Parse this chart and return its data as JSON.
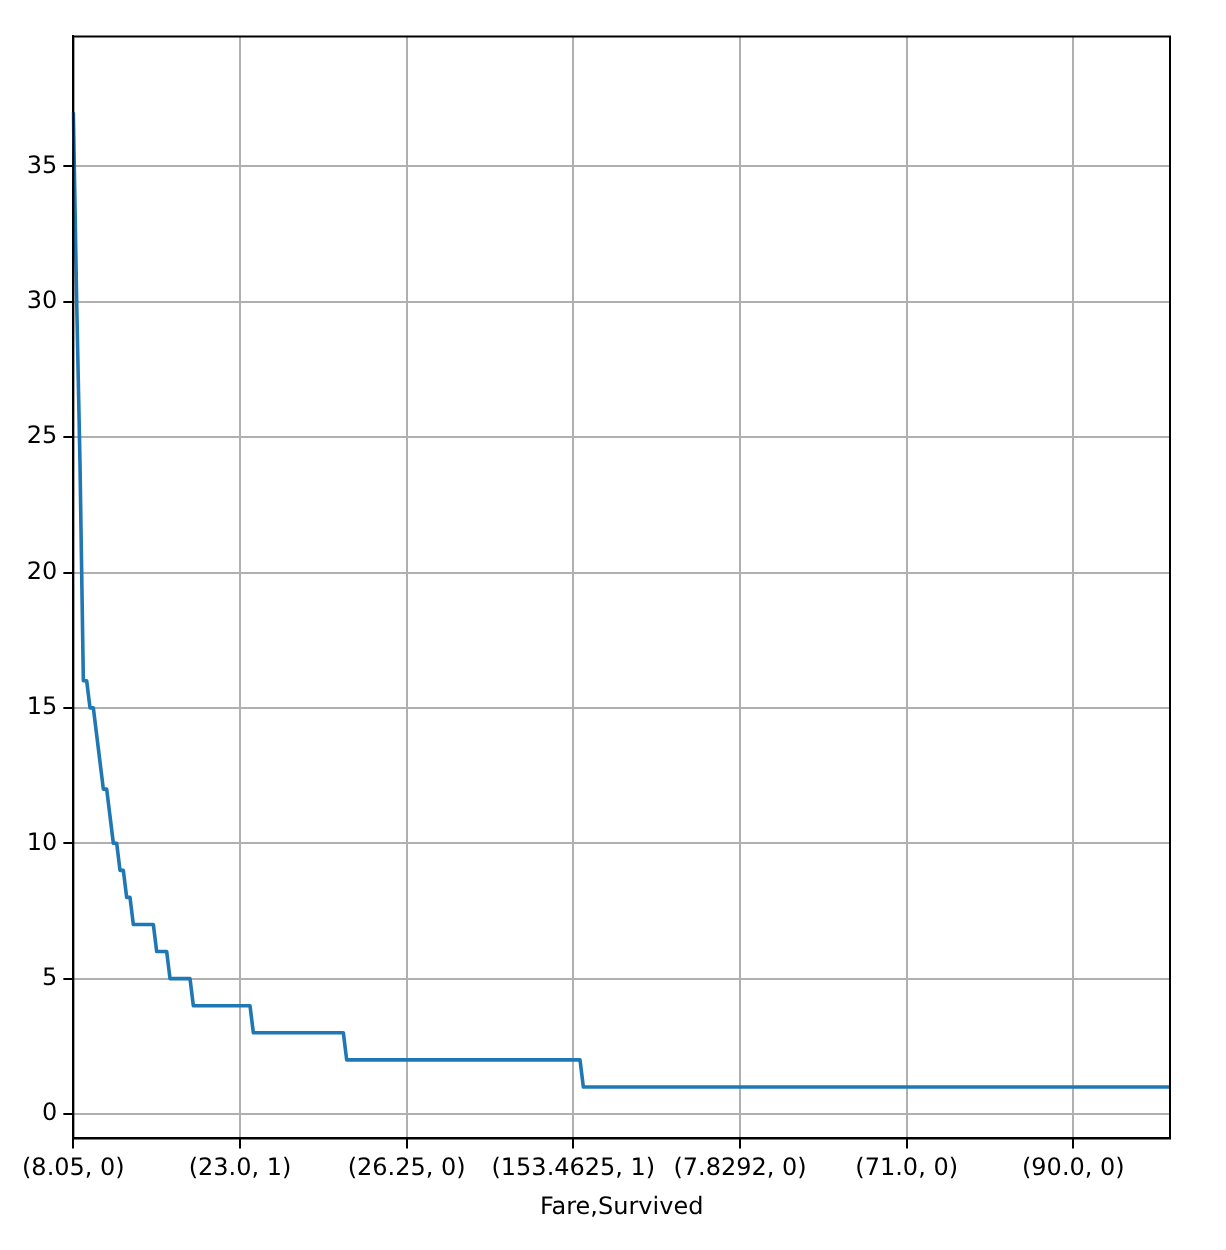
{
  "chart_data": {
    "type": "line",
    "xlabel": "Fare,Survived",
    "categories": [
      "(8.05, 0)",
      null,
      null,
      null,
      null,
      null,
      null,
      null,
      null,
      null,
      null,
      null,
      null,
      null,
      null,
      null,
      null,
      null,
      null,
      null,
      null,
      null,
      null,
      null,
      null,
      null,
      null,
      null,
      null,
      null,
      null,
      null,
      null,
      null,
      null,
      null,
      null,
      null,
      null,
      null,
      null,
      null,
      null,
      null,
      null,
      null,
      null,
      null,
      null,
      null,
      "(23.0, 1)",
      null,
      null,
      null,
      null,
      null,
      null,
      null,
      null,
      null,
      null,
      null,
      null,
      null,
      null,
      null,
      null,
      null,
      null,
      null,
      null,
      null,
      null,
      null,
      null,
      null,
      null,
      null,
      null,
      null,
      null,
      null,
      null,
      null,
      null,
      null,
      null,
      null,
      null,
      null,
      null,
      null,
      null,
      null,
      null,
      null,
      null,
      null,
      null,
      null,
      "(26.25, 0)",
      null,
      null,
      null,
      null,
      null,
      null,
      null,
      null,
      null,
      null,
      null,
      null,
      null,
      null,
      null,
      null,
      null,
      null,
      null,
      null,
      null,
      null,
      null,
      null,
      null,
      null,
      null,
      null,
      null,
      null,
      null,
      null,
      null,
      null,
      null,
      null,
      null,
      null,
      null,
      null,
      null,
      null,
      null,
      null,
      null,
      null,
      null,
      null,
      null,
      "(153.4625, 1)",
      null,
      null,
      null,
      null,
      null,
      null,
      null,
      null,
      null,
      null,
      null,
      null,
      null,
      null,
      null,
      null,
      null,
      null,
      null,
      null,
      null,
      null,
      null,
      null,
      null,
      null,
      null,
      null,
      null,
      null,
      null,
      null,
      null,
      null,
      null,
      null,
      null,
      null,
      null,
      null,
      null,
      null,
      null,
      null,
      null,
      null,
      null,
      null,
      null,
      "(7.8292, 0)",
      null,
      null,
      null,
      null,
      null,
      null,
      null,
      null,
      null,
      null,
      null,
      null,
      null,
      null,
      null,
      null,
      null,
      null,
      null,
      null,
      null,
      null,
      null,
      null,
      null,
      null,
      null,
      null,
      null,
      null,
      null,
      null,
      null,
      null,
      null,
      null,
      null,
      null,
      null,
      null,
      null,
      null,
      null,
      null,
      null,
      null,
      null,
      null,
      null,
      "(71.0, 0)",
      null,
      null,
      null,
      null,
      null,
      null,
      null,
      null,
      null,
      null,
      null,
      null,
      null,
      null,
      null,
      null,
      null,
      null,
      null,
      null,
      null,
      null,
      null,
      null,
      null,
      null,
      null,
      null,
      null,
      null,
      null,
      null,
      null,
      null,
      null,
      null,
      null,
      null,
      null,
      null,
      null,
      null,
      null,
      null,
      null,
      null,
      null,
      null,
      null,
      "(90.0, 0)",
      null,
      null,
      null,
      null,
      null,
      null,
      null,
      null,
      null,
      null,
      null,
      null,
      null,
      null,
      null,
      null,
      null,
      null,
      null,
      null,
      null,
      null,
      null,
      null,
      null,
      null,
      null,
      null,
      null
    ],
    "series": [
      {
        "color": "#1f77b4",
        "values": [
          37,
          30,
          24,
          16,
          16,
          15,
          15,
          14,
          13,
          12,
          12,
          11,
          10,
          10,
          9,
          9,
          8,
          8,
          7,
          7,
          7,
          7,
          7,
          7,
          7,
          6,
          6,
          6,
          6,
          5,
          5,
          5,
          5,
          5,
          5,
          5,
          4,
          4,
          4,
          4,
          4,
          4,
          4,
          4,
          4,
          4,
          4,
          4,
          4,
          4,
          4,
          4,
          4,
          4,
          3,
          3,
          3,
          3,
          3,
          3,
          3,
          3,
          3,
          3,
          3,
          3,
          3,
          3,
          3,
          3,
          3,
          3,
          3,
          3,
          3,
          3,
          3,
          3,
          3,
          3,
          3,
          3,
          2,
          2,
          2,
          2,
          2,
          2,
          2,
          2,
          2,
          2,
          2,
          2,
          2,
          2,
          2,
          2,
          2,
          2,
          2,
          2,
          2,
          2,
          2,
          2,
          2,
          2,
          2,
          2,
          2,
          2,
          2,
          2,
          2,
          2,
          2,
          2,
          2,
          2,
          2,
          2,
          2,
          2,
          2,
          2,
          2,
          2,
          2,
          2,
          2,
          2,
          2,
          2,
          2,
          2,
          2,
          2,
          2,
          2,
          2,
          2,
          2,
          2,
          2,
          2,
          2,
          2,
          2,
          2,
          2,
          2,
          2,
          1,
          1,
          1,
          1,
          1,
          1,
          1,
          1,
          1,
          1,
          1,
          1,
          1,
          1,
          1,
          1,
          1,
          1,
          1,
          1,
          1,
          1,
          1,
          1,
          1,
          1,
          1,
          1,
          1,
          1,
          1,
          1,
          1,
          1,
          1,
          1,
          1,
          1,
          1,
          1,
          1,
          1,
          1,
          1,
          1,
          1,
          1,
          1,
          1,
          1,
          1,
          1,
          1,
          1,
          1,
          1,
          1,
          1,
          1,
          1,
          1,
          1,
          1,
          1,
          1,
          1,
          1,
          1,
          1,
          1,
          1,
          1,
          1,
          1,
          1,
          1,
          1,
          1,
          1,
          1,
          1,
          1,
          1,
          1,
          1,
          1,
          1,
          1,
          1,
          1,
          1,
          1,
          1,
          1,
          1,
          1,
          1,
          1,
          1,
          1,
          1,
          1,
          1,
          1,
          1,
          1,
          1,
          1,
          1,
          1,
          1,
          1,
          1,
          1,
          1,
          1,
          1,
          1,
          1,
          1,
          1,
          1,
          1,
          1,
          1,
          1,
          1,
          1,
          1,
          1,
          1,
          1,
          1,
          1,
          1,
          1,
          1,
          1,
          1,
          1,
          1,
          1,
          1,
          1,
          1,
          1,
          1,
          1,
          1,
          1,
          1,
          1,
          1,
          1,
          1,
          1,
          1,
          1,
          1,
          1,
          1,
          1,
          1,
          1,
          1,
          1,
          1,
          1,
          1,
          1,
          1,
          1,
          1,
          1,
          1,
          1,
          1
        ]
      }
    ],
    "ylim": [
      -0.9,
      39.8
    ],
    "yticks": [
      0,
      5,
      10,
      15,
      20,
      25,
      30,
      35
    ],
    "grid": true
  }
}
